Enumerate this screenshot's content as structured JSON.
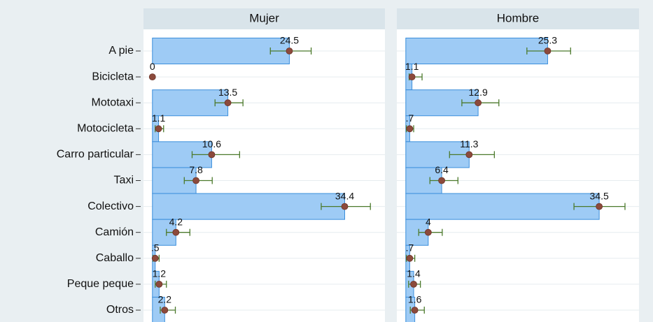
{
  "chart_data": {
    "type": "bar",
    "orientation": "horizontal",
    "categories": [
      "A pie",
      "Bicicleta",
      "Mototaxi",
      "Motocicleta",
      "Carro particular",
      "Taxi",
      "Colectivo",
      "Camión",
      "Caballo",
      "Peque peque",
      "Otros"
    ],
    "xlim": [
      -1.6,
      41.6
    ],
    "grid": true,
    "series": [
      {
        "name": "Mujer",
        "color": "#9ecbf5",
        "values": [
          24.5,
          0,
          13.5,
          1.1,
          10.6,
          7.8,
          34.4,
          4.2,
          0.5,
          1.2,
          2.2
        ],
        "value_labels": [
          "24.5",
          "0",
          "13.5",
          "1.1",
          "10.6",
          "7.8",
          "34.4",
          "4.2",
          ".5",
          "1.2",
          "2.2"
        ],
        "ci_low": [
          21.1,
          null,
          11.2,
          0.5,
          7.1,
          5.7,
          30.2,
          2.5,
          0.1,
          0.5,
          1.4
        ],
        "ci_high": [
          28.4,
          null,
          16.2,
          2.0,
          15.6,
          10.7,
          39.0,
          6.7,
          1.2,
          2.5,
          4.1
        ]
      },
      {
        "name": "Hombre",
        "color": "#9ecbf5",
        "values": [
          25.3,
          1.1,
          12.9,
          0.7,
          11.3,
          6.4,
          34.5,
          4,
          0.7,
          1.4,
          1.6
        ],
        "value_labels": [
          "25.3",
          "1.1",
          "12.9",
          ".7",
          "11.3",
          "6.4",
          "34.5",
          "4",
          ".7",
          "1.4",
          "1.6"
        ],
        "ci_low": [
          21.6,
          0.6,
          10.0,
          0.1,
          7.8,
          4.3,
          30.0,
          2.3,
          0.1,
          0.5,
          0.8
        ],
        "ci_high": [
          29.4,
          2.9,
          16.6,
          1.4,
          15.8,
          9.3,
          39.1,
          6.5,
          1.6,
          2.6,
          3.3
        ]
      }
    ]
  }
}
